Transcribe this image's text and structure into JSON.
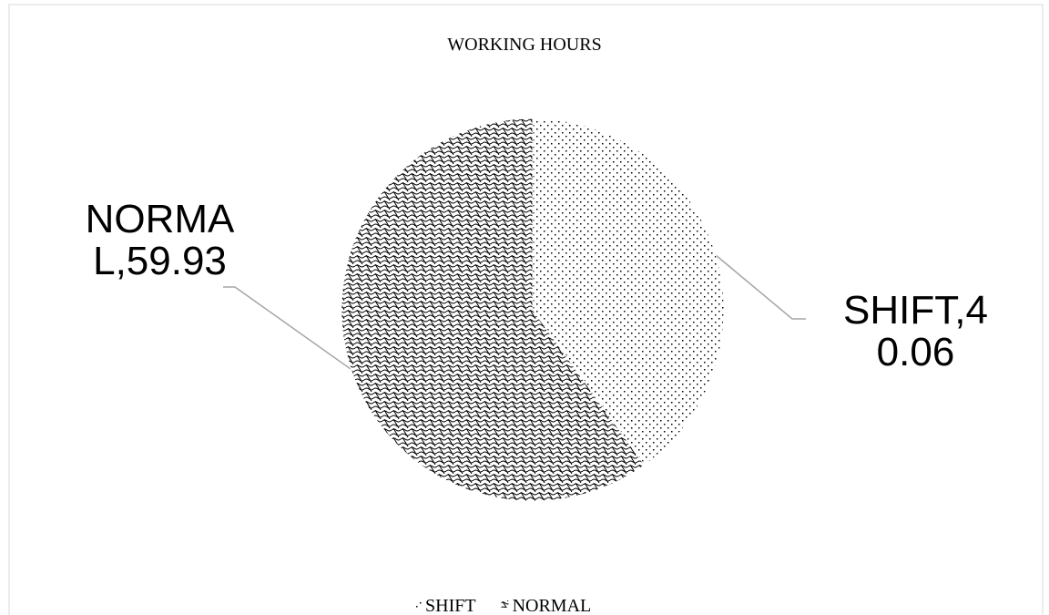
{
  "chart_data": {
    "type": "pie",
    "title": "WORKING HOURS",
    "categories": [
      "SHIFT",
      "NORMAL"
    ],
    "values": [
      40.06,
      59.93
    ],
    "value_labels": [
      "SHIFT,40.06",
      "NORMAL,59.93"
    ],
    "legend": "bottom"
  }
}
